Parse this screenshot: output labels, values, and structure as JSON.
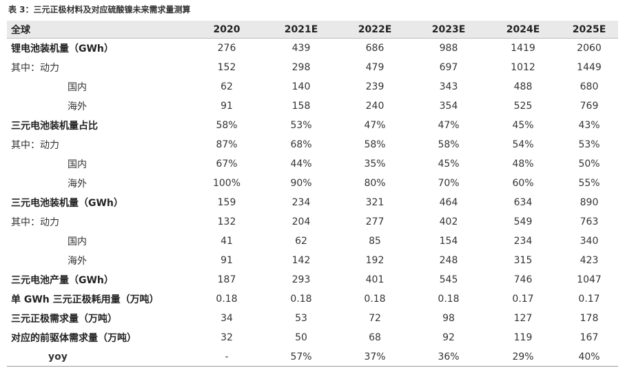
{
  "caption": "表 3：三元正极材料及对应硫酸镍未来需求量测算",
  "header": {
    "label": "全球",
    "years": [
      "2020",
      "2021E",
      "2022E",
      "2023E",
      "2024E",
      "2025E"
    ]
  },
  "rows": [
    {
      "label": "锂电池装机量（GWh）",
      "style": "bold",
      "values": [
        "276",
        "439",
        "686",
        "988",
        "1419",
        "2060"
      ]
    },
    {
      "label": "其中：动力",
      "style": "plain",
      "values": [
        "152",
        "298",
        "479",
        "697",
        "1012",
        "1449"
      ]
    },
    {
      "label": "国内",
      "style": "ind",
      "values": [
        "62",
        "140",
        "239",
        "343",
        "488",
        "680"
      ]
    },
    {
      "label": "海外",
      "style": "ind",
      "values": [
        "91",
        "158",
        "240",
        "354",
        "525",
        "769"
      ]
    },
    {
      "label": "三元电池装机量占比",
      "style": "bold",
      "values": [
        "58%",
        "53%",
        "47%",
        "47%",
        "45%",
        "43%"
      ]
    },
    {
      "label": "其中：动力",
      "style": "plain",
      "values": [
        "87%",
        "68%",
        "58%",
        "58%",
        "54%",
        "53%"
      ]
    },
    {
      "label": "国内",
      "style": "ind",
      "values": [
        "67%",
        "44%",
        "35%",
        "45%",
        "48%",
        "50%"
      ]
    },
    {
      "label": "海外",
      "style": "ind",
      "values": [
        "100%",
        "90%",
        "80%",
        "70%",
        "60%",
        "55%"
      ]
    },
    {
      "label": "三元电池装机量（GWh）",
      "style": "bold",
      "values": [
        "159",
        "234",
        "321",
        "464",
        "634",
        "890"
      ]
    },
    {
      "label": "其中：动力",
      "style": "plain",
      "values": [
        "132",
        "204",
        "277",
        "402",
        "549",
        "763"
      ]
    },
    {
      "label": "国内",
      "style": "ind",
      "values": [
        "41",
        "62",
        "85",
        "154",
        "234",
        "340"
      ]
    },
    {
      "label": "海外",
      "style": "ind",
      "values": [
        "91",
        "142",
        "192",
        "248",
        "315",
        "423"
      ]
    },
    {
      "label": "三元电池产量（GWh）",
      "style": "bold",
      "values": [
        "187",
        "293",
        "401",
        "545",
        "746",
        "1047"
      ]
    },
    {
      "label": "单 GWh 三元正极耗用量（万吨）",
      "style": "bold",
      "values": [
        "0.18",
        "0.18",
        "0.18",
        "0.18",
        "0.17",
        "0.17"
      ]
    },
    {
      "label": "三元正极需求量（万吨）",
      "style": "bold",
      "values": [
        "34",
        "53",
        "72",
        "98",
        "127",
        "178"
      ]
    },
    {
      "label": "对应的前驱体需求量（万吨）",
      "style": "bold",
      "values": [
        "32",
        "50",
        "68",
        "92",
        "119",
        "167"
      ]
    },
    {
      "label": "yoy",
      "style": "yoy",
      "values": [
        "-",
        "57%",
        "37%",
        "36%",
        "29%",
        "40%"
      ]
    }
  ]
}
